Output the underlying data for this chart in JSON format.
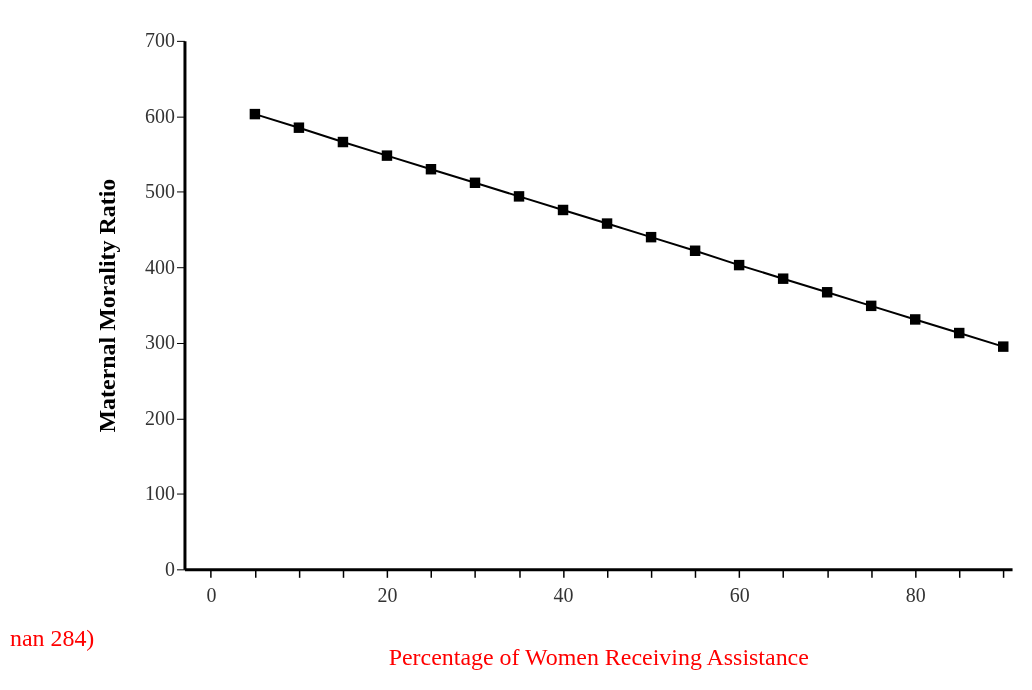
{
  "chart_data": {
    "type": "line",
    "xlabel": "Percentage of Women Receiving Assistance",
    "ylabel": "Maternal Morality Ratio",
    "annotations": [
      "nan 284)"
    ],
    "x": [
      5,
      10,
      15,
      20,
      25,
      30,
      35,
      40,
      45,
      50,
      55,
      60,
      65,
      70,
      75,
      80,
      85,
      90
    ],
    "series": [
      {
        "color": "#000000",
        "values": [
          603,
          585,
          566,
          548,
          530,
          512,
          494,
          476,
          458,
          440,
          422,
          403,
          385,
          367,
          349,
          331,
          313,
          295
        ]
      }
    ],
    "xlim": [
      -3,
      91
    ],
    "xticks": [
      0,
      {
        "value": 5,
        "label": null
      },
      {
        "value": 10,
        "label": null
      },
      {
        "value": 15,
        "label": null
      },
      20,
      {
        "value": 25,
        "label": null
      },
      {
        "value": 30,
        "label": null
      },
      {
        "value": 35,
        "label": null
      },
      40,
      {
        "value": 45,
        "label": null
      },
      {
        "value": 50,
        "label": null
      },
      {
        "value": 55,
        "label": null
      },
      60,
      {
        "value": 65,
        "label": null
      },
      {
        "value": 70,
        "label": null
      },
      {
        "value": 75,
        "label": null
      },
      80,
      {
        "value": 85,
        "label": null
      },
      {
        "value": 90,
        "label": null
      }
    ],
    "ylim": [
      0,
      700
    ],
    "yticks": [
      0,
      100,
      200,
      300,
      400,
      500,
      600,
      700
    ],
    "grid": false,
    "legend": false,
    "marker": "square",
    "line_style": "solid"
  }
}
